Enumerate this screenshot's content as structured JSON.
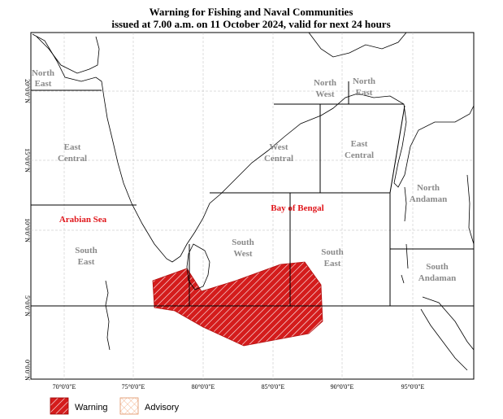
{
  "header": {
    "title": [
      "Warning for Fishing and Naval Communities",
      "issued at 7.00 a.m. on 11 October 2024, valid for next 24 hours"
    ]
  },
  "regions": [
    {
      "lines": [
        "North",
        "East"
      ]
    },
    {
      "lines": [
        "North",
        "West"
      ]
    },
    {
      "lines": [
        "North",
        "East"
      ]
    },
    {
      "lines": [
        "East",
        "Central"
      ]
    },
    {
      "lines": [
        "West",
        "Central"
      ]
    },
    {
      "lines": [
        "East",
        "Central"
      ]
    },
    {
      "lines": [
        "North",
        "Andaman"
      ]
    },
    {
      "lines": [
        "South",
        "West"
      ]
    },
    {
      "lines": [
        "South",
        "East"
      ]
    },
    {
      "lines": [
        "South",
        "East"
      ]
    },
    {
      "lines": [
        "South",
        "Andaman"
      ]
    }
  ],
  "seas": [
    "Arabian Sea",
    "Bay of Bengal"
  ],
  "lon_ticks": [
    "70°0'0\"E",
    "75°0'0\"E",
    "80°0'0\"E",
    "85°0'0\"E",
    "90°0'0\"E",
    "95°0'0\"E"
  ],
  "lat_ticks": [
    "20°0'0\"N",
    "15°0'0\"N",
    "10°0'0\"N",
    "5°0'0\"N",
    "0°0'0\"N"
  ],
  "legend": [
    "Warning",
    "Advisory"
  ]
}
